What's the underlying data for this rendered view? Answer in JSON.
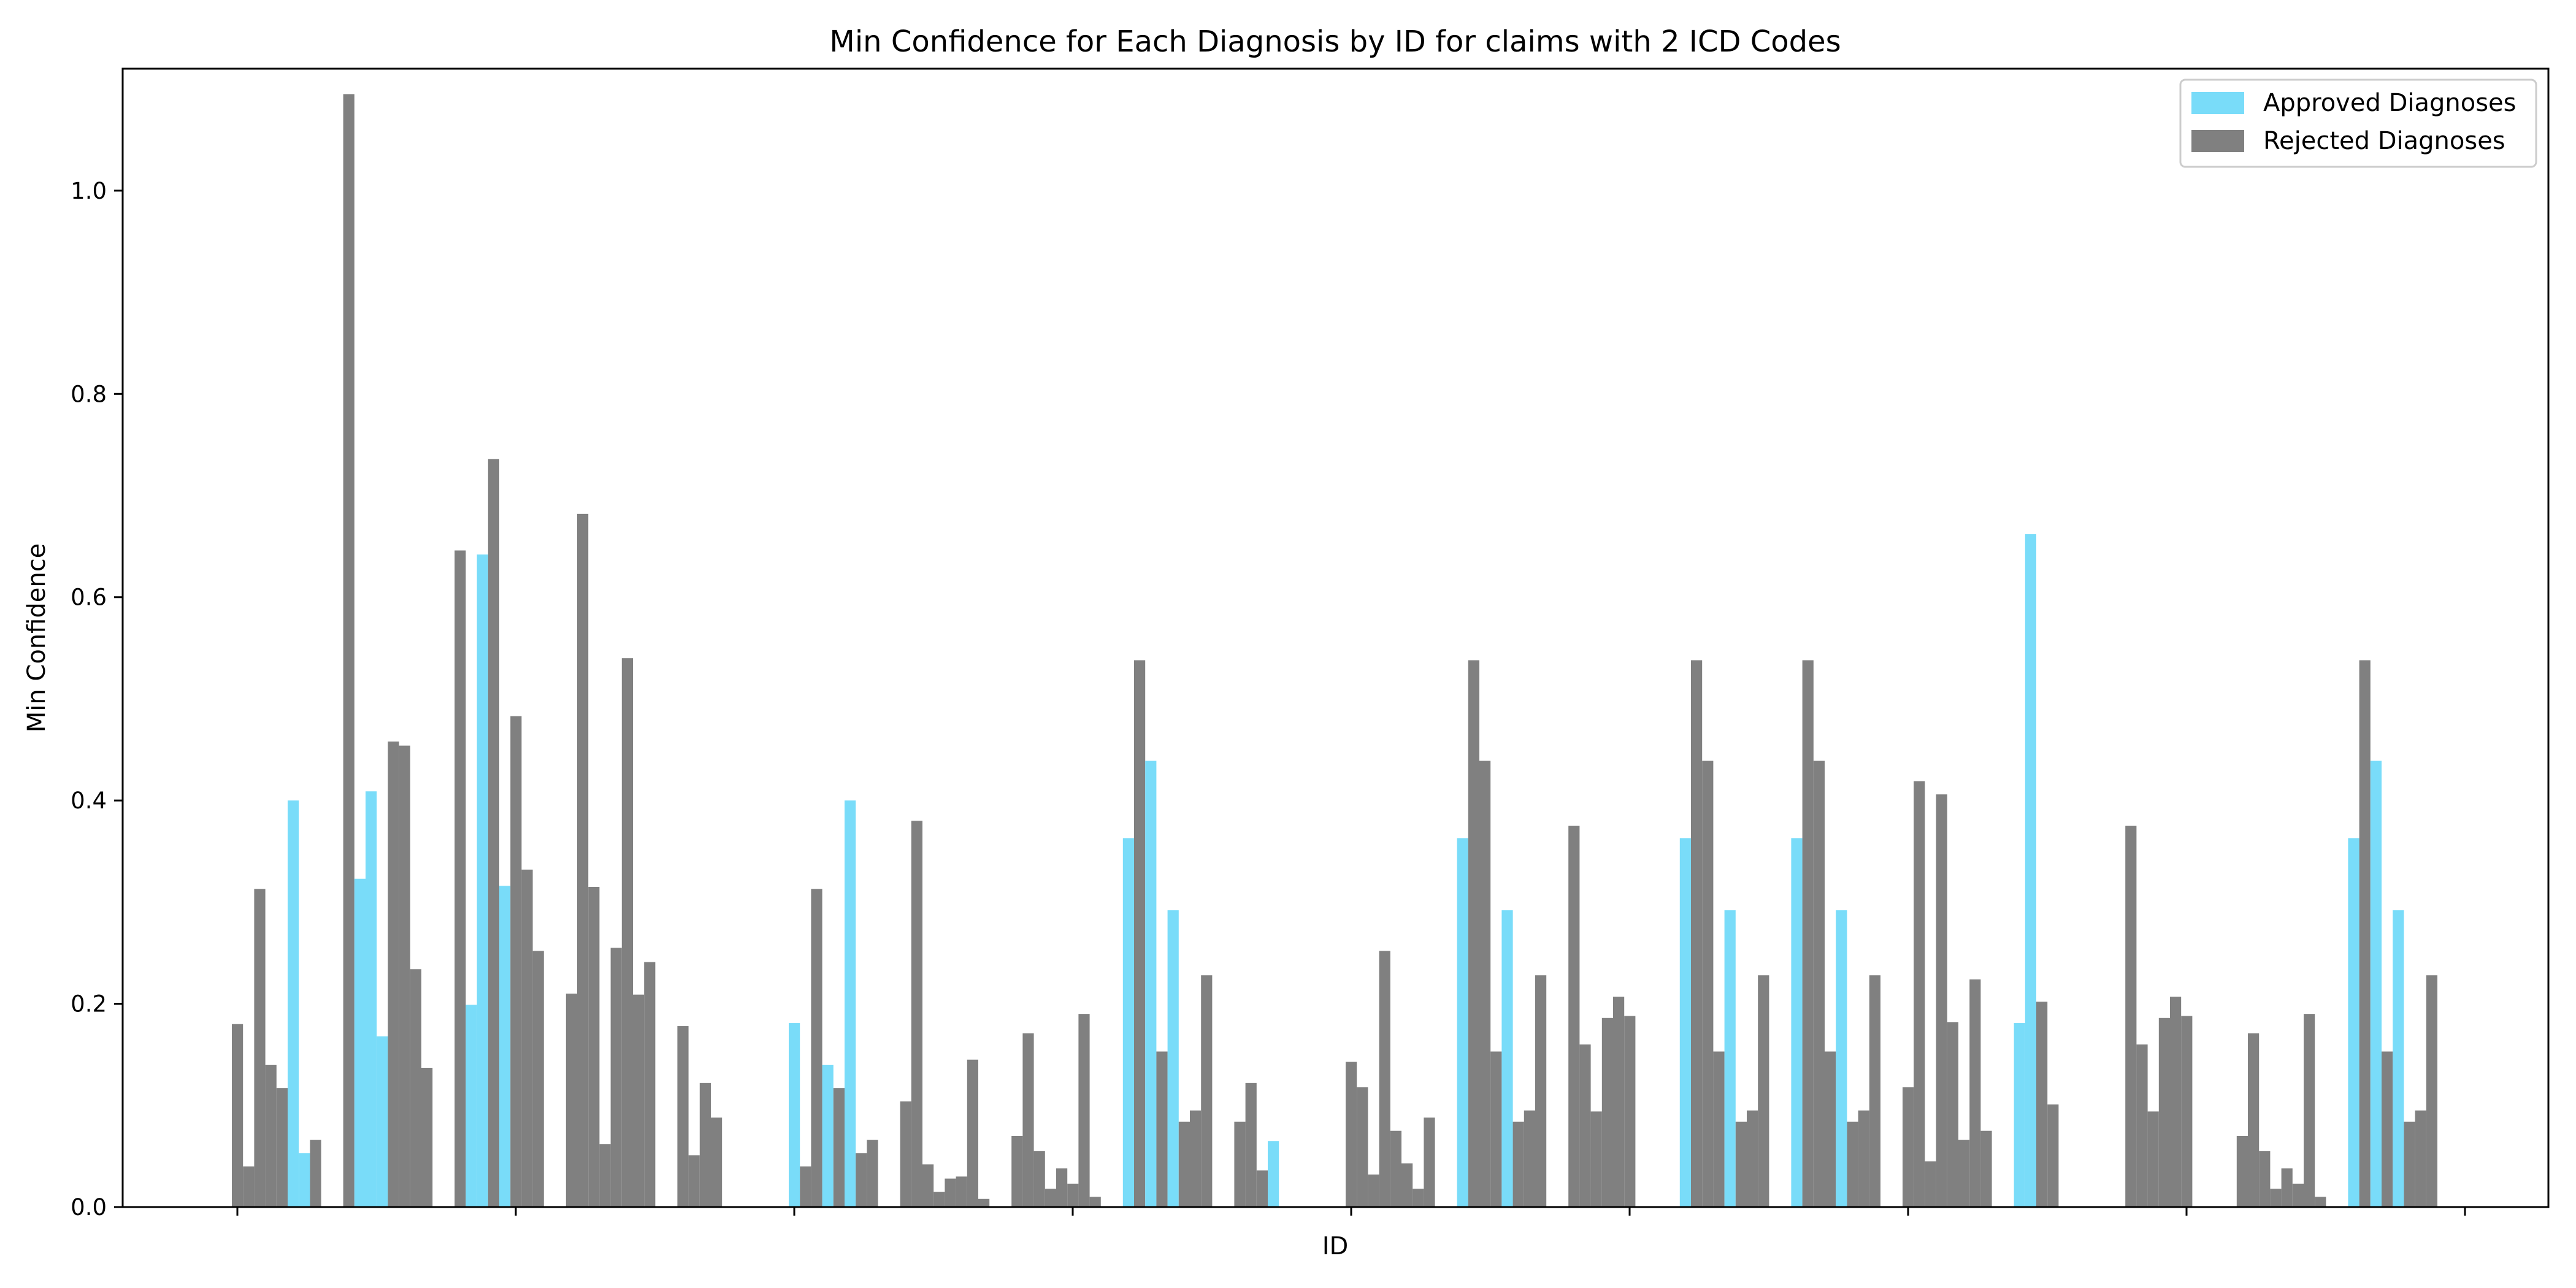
{
  "chart_data": {
    "type": "bar",
    "title": "Min Confidence for Each Diagnosis by ID for claims with 2 ICD Codes",
    "xlabel": "ID",
    "ylabel": "Min Confidence",
    "ylim": [
      0,
      1.12
    ],
    "yticks": [
      "0.0",
      "0.2",
      "0.4",
      "0.6",
      "0.8",
      "1.0"
    ],
    "xtick_count": 9,
    "legend_position": "top-right",
    "grid": false,
    "colors": {
      "approved": "#79DCF9",
      "rejected": "#808080"
    },
    "series": [
      {
        "name": "Approved Diagnoses",
        "key": "approved"
      },
      {
        "name": "Rejected Diagnoses",
        "key": "rejected"
      }
    ],
    "groups": [
      [
        [
          "r",
          0.18
        ],
        [
          "r",
          0.04
        ],
        [
          "r",
          0.313
        ],
        [
          "r",
          0.14
        ],
        [
          "r",
          0.117
        ],
        [
          "a",
          0.4
        ],
        [
          "a",
          0.053
        ],
        [
          "r",
          0.066
        ]
      ],
      [
        [
          "r",
          1.095
        ],
        [
          "a",
          0.323
        ],
        [
          "a",
          0.409
        ],
        [
          "a",
          0.168
        ],
        [
          "r",
          0.458
        ],
        [
          "r",
          0.454
        ],
        [
          "r",
          0.234
        ],
        [
          "r",
          0.137
        ]
      ],
      [
        [
          "r",
          0.646
        ],
        [
          "a",
          0.199
        ],
        [
          "a",
          0.642
        ],
        [
          "r",
          0.736
        ],
        [
          "a",
          0.316
        ],
        [
          "r",
          0.483
        ],
        [
          "r",
          0.332
        ],
        [
          "r",
          0.252
        ]
      ],
      [
        [
          "r",
          0.21
        ],
        [
          "r",
          0.682
        ],
        [
          "r",
          0.315
        ],
        [
          "r",
          0.062
        ],
        [
          "r",
          0.255
        ],
        [
          "r",
          0.54
        ],
        [
          "r",
          0.209
        ],
        [
          "r",
          0.241
        ]
      ],
      [
        [
          "r",
          0.178
        ],
        [
          "r",
          0.051
        ],
        [
          "r",
          0.122
        ],
        [
          "r",
          0.088
        ]
      ],
      [
        [
          "a",
          0.181
        ],
        [
          "r",
          0.04
        ],
        [
          "r",
          0.313
        ],
        [
          "a",
          0.14
        ],
        [
          "r",
          0.117
        ],
        [
          "a",
          0.4
        ],
        [
          "r",
          0.053
        ],
        [
          "r",
          0.066
        ]
      ],
      [
        [
          "r",
          0.104
        ],
        [
          "r",
          0.38
        ],
        [
          "r",
          0.042
        ],
        [
          "r",
          0.015
        ],
        [
          "r",
          0.028
        ],
        [
          "r",
          0.03
        ],
        [
          "r",
          0.145
        ],
        [
          "r",
          0.008
        ]
      ],
      [
        [
          "r",
          0.07
        ],
        [
          "r",
          0.171
        ],
        [
          "r",
          0.055
        ],
        [
          "r",
          0.018
        ],
        [
          "r",
          0.038
        ],
        [
          "r",
          0.023
        ],
        [
          "r",
          0.19
        ],
        [
          "r",
          0.01
        ]
      ],
      [
        [
          "a",
          0.363
        ],
        [
          "r",
          0.538
        ],
        [
          "a",
          0.439
        ],
        [
          "r",
          0.153
        ],
        [
          "a",
          0.292
        ],
        [
          "r",
          0.084
        ],
        [
          "r",
          0.095
        ],
        [
          "r",
          0.228
        ]
      ],
      [
        [
          "r",
          0.084
        ],
        [
          "r",
          0.122
        ],
        [
          "r",
          0.036
        ],
        [
          "a",
          0.065
        ]
      ],
      [
        [
          "r",
          0.143
        ],
        [
          "r",
          0.118
        ],
        [
          "r",
          0.032
        ],
        [
          "r",
          0.252
        ],
        [
          "r",
          0.075
        ],
        [
          "r",
          0.043
        ],
        [
          "r",
          0.018
        ],
        [
          "r",
          0.088
        ]
      ],
      [
        [
          "a",
          0.363
        ],
        [
          "r",
          0.538
        ],
        [
          "r",
          0.439
        ],
        [
          "r",
          0.153
        ],
        [
          "a",
          0.292
        ],
        [
          "r",
          0.084
        ],
        [
          "r",
          0.095
        ],
        [
          "r",
          0.228
        ]
      ],
      [
        [
          "r",
          0.375
        ],
        [
          "r",
          0.16
        ],
        [
          "r",
          0.094
        ],
        [
          "r",
          0.186
        ],
        [
          "r",
          0.207
        ],
        [
          "r",
          0.188
        ]
      ],
      [
        [
          "a",
          0.363
        ],
        [
          "r",
          0.538
        ],
        [
          "r",
          0.439
        ],
        [
          "r",
          0.153
        ],
        [
          "a",
          0.292
        ],
        [
          "r",
          0.084
        ],
        [
          "r",
          0.095
        ],
        [
          "r",
          0.228
        ]
      ],
      [
        [
          "a",
          0.363
        ],
        [
          "r",
          0.538
        ],
        [
          "r",
          0.439
        ],
        [
          "r",
          0.153
        ],
        [
          "a",
          0.292
        ],
        [
          "r",
          0.084
        ],
        [
          "r",
          0.095
        ],
        [
          "r",
          0.228
        ]
      ],
      [
        [
          "r",
          0.118
        ],
        [
          "r",
          0.419
        ],
        [
          "r",
          0.045
        ],
        [
          "r",
          0.406
        ],
        [
          "r",
          0.182
        ],
        [
          "r",
          0.066
        ],
        [
          "r",
          0.224
        ],
        [
          "r",
          0.075
        ]
      ],
      [
        [
          "a",
          0.181
        ],
        [
          "a",
          0.662
        ],
        [
          "r",
          0.202
        ],
        [
          "r",
          0.101
        ]
      ],
      [
        [
          "r",
          0.375
        ],
        [
          "r",
          0.16
        ],
        [
          "r",
          0.094
        ],
        [
          "r",
          0.186
        ],
        [
          "r",
          0.207
        ],
        [
          "r",
          0.188
        ]
      ],
      [
        [
          "r",
          0.07
        ],
        [
          "r",
          0.171
        ],
        [
          "r",
          0.055
        ],
        [
          "r",
          0.018
        ],
        [
          "r",
          0.038
        ],
        [
          "r",
          0.023
        ],
        [
          "r",
          0.19
        ],
        [
          "r",
          0.01
        ]
      ],
      [
        [
          "a",
          0.363
        ],
        [
          "r",
          0.538
        ],
        [
          "a",
          0.439
        ],
        [
          "r",
          0.153
        ],
        [
          "a",
          0.292
        ],
        [
          "r",
          0.084
        ],
        [
          "r",
          0.095
        ],
        [
          "r",
          0.228
        ]
      ]
    ]
  }
}
